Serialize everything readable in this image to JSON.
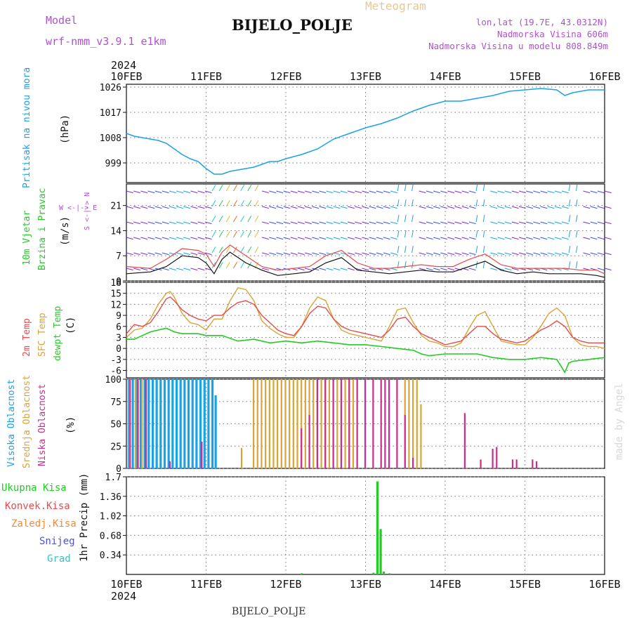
{
  "header": {
    "top_title": "Meteogram",
    "station": "BIJELO_POLJE",
    "model_label": "Model",
    "model_name": "wrf-nmm_v3.9.1  e1km",
    "coords": "lon,lat (19.7E, 43.0312N)",
    "elevation": "Nadmorska Visina 606m",
    "model_elevation": "Nadmorska Visina u modelu 808.849m",
    "footer_station": "BIJELO_POLJE",
    "credit": "made by Angel"
  },
  "colors": {
    "pressure": "#1ba2e6",
    "temp2m": "#e84b4b",
    "sfc": "#d9a437",
    "dewpt": "#22cc22",
    "high_cloud": "#1ba2e6",
    "mid_cloud": "#d9a437",
    "low_cloud": "#cc2d8c",
    "total_precip": "#22cc22",
    "conv_precip": "#e84b4b",
    "frozen_precip": "#f08a3a",
    "snow": "#5050e0",
    "grad": "#3cc0c0",
    "wind_label": "#22cc22",
    "gust": "#e84b4b",
    "compass": "#b050d0",
    "model_text": "#b050d0"
  },
  "chart_data": [
    {
      "type": "line",
      "id": "pressure",
      "ylabel": "(hPa)",
      "side_label": "Pritisak na nivou mora",
      "year": "2024",
      "x_ticks": [
        "10FEB",
        "11FEB",
        "12FEB",
        "13FEB",
        "14FEB",
        "15FEB",
        "16FEB"
      ],
      "ylim": [
        992,
        1027
      ],
      "y_ticks": [
        999,
        1008,
        1017,
        1026
      ],
      "x": [
        0,
        0.1,
        0.2,
        0.3,
        0.4,
        0.5,
        0.6,
        0.7,
        0.8,
        0.9,
        1.0,
        1.1,
        1.2,
        1.3,
        1.4,
        1.5,
        1.6,
        1.7,
        1.8,
        1.9,
        2.0,
        2.2,
        2.4,
        2.6,
        2.8,
        3.0,
        3.2,
        3.4,
        3.6,
        3.8,
        4.0,
        4.2,
        4.4,
        4.6,
        4.8,
        5.0,
        5.2,
        5.4,
        5.5,
        5.6,
        5.8,
        6.0
      ],
      "values": [
        1009.5,
        1008.5,
        1008,
        1007.5,
        1007,
        1006,
        1004,
        1002,
        1000.5,
        999.5,
        997,
        995,
        995,
        996,
        996.5,
        997,
        997.5,
        998.5,
        999.5,
        999.5,
        1000.5,
        1002,
        1004,
        1007.5,
        1009.5,
        1011.5,
        1013,
        1015,
        1017.5,
        1019.5,
        1021,
        1021,
        1022,
        1023,
        1024.5,
        1025,
        1025.5,
        1025,
        1023,
        1024,
        1025,
        1025
      ]
    },
    {
      "type": "line",
      "id": "wind",
      "ylabel": "(m/s)",
      "side_label_1": "10m Vjetar",
      "side_label_2": "Brzina i Pravac",
      "compass_label": "W <-|-> E",
      "compass_vertical": "S <-|-> N",
      "ylim": [
        0,
        27
      ],
      "y_ticks": [
        0,
        7,
        14,
        21
      ],
      "series": [
        {
          "name": "",
          "x": [
            0,
            0.3,
            0.5,
            0.7,
            0.9,
            1.0,
            1.1,
            1.2,
            1.3,
            1.5,
            1.7,
            1.9,
            2.1,
            2.3,
            2.5,
            2.7,
            2.9,
            3.1,
            3.3,
            3.5,
            3.7,
            3.9,
            4.1,
            4.3,
            4.5,
            4.7,
            4.9,
            5.1,
            5.3,
            5.5,
            5.7,
            5.9,
            6.0
          ],
          "values": [
            2,
            2.5,
            4,
            7,
            6.5,
            5,
            2,
            6,
            8,
            5,
            3,
            1.5,
            2,
            2.5,
            5,
            6.5,
            3,
            2.5,
            2,
            2.5,
            3,
            2.5,
            2.5,
            4,
            5.5,
            3,
            2,
            2.5,
            2,
            2,
            2,
            1.5,
            1
          ]
        },
        {
          "name": "",
          "x": [
            0,
            0.3,
            0.5,
            0.7,
            0.9,
            1.0,
            1.1,
            1.2,
            1.3,
            1.5,
            1.7,
            1.9,
            2.1,
            2.3,
            2.5,
            2.7,
            2.9,
            3.1,
            3.3,
            3.5,
            3.7,
            3.9,
            4.1,
            4.3,
            4.5,
            4.7,
            4.9,
            5.1,
            5.3,
            5.5,
            5.7,
            5.9,
            6.0
          ],
          "values": [
            4,
            3.5,
            6,
            9,
            8.5,
            7.5,
            4,
            8,
            10,
            7,
            4,
            3,
            3.5,
            4,
            7,
            8.5,
            5,
            3.5,
            3.5,
            4,
            4.5,
            4,
            4,
            6,
            7.5,
            4.5,
            3.5,
            3.5,
            3.5,
            3.5,
            3,
            3,
            2
          ]
        }
      ]
    },
    {
      "type": "line",
      "id": "temperature",
      "ylabel": "(C)",
      "side_label_1": "2m Temp",
      "side_label_2": "SFC Temp",
      "side_label_3": "dewpt Temp",
      "ylim": [
        -8,
        18
      ],
      "y_ticks": [
        -6,
        -3,
        0,
        3,
        6,
        9,
        12,
        15,
        18
      ],
      "series": [
        {
          "name": "2m Temp",
          "x": [
            0,
            0.1,
            0.2,
            0.3,
            0.4,
            0.5,
            0.55,
            0.6,
            0.7,
            0.8,
            0.9,
            1.0,
            1.1,
            1.2,
            1.3,
            1.4,
            1.5,
            1.6,
            1.7,
            1.8,
            1.9,
            2.0,
            2.1,
            2.2,
            2.3,
            2.4,
            2.5,
            2.6,
            2.7,
            2.8,
            2.9,
            3.0,
            3.1,
            3.2,
            3.3,
            3.4,
            3.5,
            3.6,
            3.7,
            3.8,
            3.9,
            4.0,
            4.1,
            4.2,
            4.3,
            4.4,
            4.5,
            4.6,
            4.7,
            4.8,
            4.9,
            5.0,
            5.1,
            5.2,
            5.3,
            5.4,
            5.5,
            5.6,
            5.7,
            5.8,
            5.9,
            6.0
          ],
          "values": [
            4,
            6.5,
            6,
            7,
            10,
            13.5,
            14,
            13,
            10.5,
            9,
            8,
            7.5,
            9,
            9,
            11,
            12.5,
            13,
            12,
            9,
            7,
            5,
            4,
            3.5,
            6,
            9.5,
            11.5,
            11,
            8,
            6,
            5,
            4.5,
            4,
            3.5,
            3,
            5,
            8,
            8.5,
            6,
            4,
            3,
            2,
            1,
            1.5,
            2,
            4,
            6,
            6,
            4,
            2.5,
            2,
            1.5,
            2,
            3.5,
            5,
            6,
            7.5,
            6,
            3,
            2,
            1.5,
            1.5,
            1.5
          ]
        },
        {
          "name": "SFC Temp",
          "x": [
            0,
            0.1,
            0.2,
            0.3,
            0.4,
            0.5,
            0.55,
            0.6,
            0.7,
            0.8,
            0.9,
            1.0,
            1.1,
            1.2,
            1.3,
            1.4,
            1.5,
            1.6,
            1.7,
            1.8,
            1.9,
            2.0,
            2.1,
            2.2,
            2.3,
            2.4,
            2.5,
            2.6,
            2.7,
            2.8,
            2.9,
            3.0,
            3.1,
            3.2,
            3.3,
            3.4,
            3.5,
            3.6,
            3.7,
            3.8,
            3.9,
            4.0,
            4.1,
            4.2,
            4.3,
            4.4,
            4.5,
            4.6,
            4.7,
            4.8,
            4.9,
            5.0,
            5.1,
            5.2,
            5.3,
            5.4,
            5.5,
            5.6,
            5.7,
            5.8,
            5.9,
            6.0
          ],
          "values": [
            3,
            5,
            5.5,
            8,
            12,
            15,
            15.5,
            14,
            9.5,
            7,
            6.5,
            5,
            8,
            8,
            13,
            16.5,
            16,
            13,
            7.5,
            5.5,
            4,
            3,
            3,
            6,
            11,
            14,
            13,
            8,
            5,
            4,
            3.5,
            3,
            2.5,
            2,
            6,
            10.5,
            11,
            7,
            3.5,
            2,
            1.5,
            0.5,
            0.5,
            1.5,
            5.5,
            9,
            10,
            6,
            2,
            1.5,
            1,
            1,
            3,
            6,
            9.5,
            11,
            9,
            3,
            1,
            0.5,
            0.5,
            0
          ]
        },
        {
          "name": "dewpt Temp",
          "x": [
            0,
            0.1,
            0.2,
            0.3,
            0.4,
            0.5,
            0.6,
            0.7,
            0.8,
            0.9,
            1.0,
            1.2,
            1.4,
            1.6,
            1.8,
            2.0,
            2.2,
            2.4,
            2.6,
            2.8,
            3.0,
            3.2,
            3.4,
            3.6,
            3.7,
            3.8,
            4.0,
            4.2,
            4.4,
            4.6,
            4.8,
            5.0,
            5.2,
            5.4,
            5.5,
            5.55,
            5.6,
            5.8,
            6.0
          ],
          "values": [
            2.5,
            2.5,
            3.5,
            4.5,
            5,
            5.5,
            4.5,
            4,
            4,
            4,
            3.5,
            3.5,
            2,
            2.5,
            1.5,
            2,
            1.5,
            2,
            1.5,
            1,
            1,
            0.5,
            0,
            -0.5,
            -1.5,
            -2,
            -1.5,
            -1.5,
            -1.5,
            -2.5,
            -3,
            -3,
            -2.5,
            -3,
            -6.5,
            -4,
            -3.5,
            -3,
            -2.5
          ]
        }
      ]
    },
    {
      "type": "bar",
      "id": "clouds",
      "ylabel": "(%)",
      "side_label_1": "Visoka Oblacnost",
      "side_label_2": "Srednja Oblacnost",
      "side_label_3": "Niska Oblacnost",
      "ylim": [
        0,
        100
      ],
      "y_ticks": [
        0,
        25,
        50,
        75,
        100
      ],
      "series": [
        {
          "name": "Visoka Oblacnost",
          "x": [
            0.03,
            0.08,
            0.13,
            0.18,
            0.23,
            0.28,
            0.33,
            0.38,
            0.43,
            0.48,
            0.53,
            0.58,
            0.63,
            0.68,
            0.73,
            0.78,
            0.83,
            0.88,
            0.93,
            0.98,
            1.03,
            1.08,
            1.12
          ],
          "values": [
            100,
            100,
            100,
            100,
            100,
            100,
            100,
            100,
            100,
            100,
            100,
            100,
            100,
            100,
            100,
            100,
            100,
            100,
            100,
            100,
            100,
            100,
            82
          ]
        },
        {
          "name": "Srednja Oblacnost",
          "x": [
            0.04,
            0.12,
            0.2,
            1.45,
            1.6,
            1.65,
            1.7,
            1.75,
            1.8,
            1.85,
            1.9,
            1.95,
            2.0,
            2.05,
            2.1,
            2.15,
            2.2,
            2.25,
            2.3,
            2.35,
            2.4,
            2.45,
            2.5,
            2.55,
            2.6,
            2.65,
            2.7,
            2.75,
            2.8,
            2.85,
            3.5,
            3.55,
            3.6,
            3.65,
            3.7
          ],
          "values": [
            100,
            100,
            100,
            23,
            100,
            100,
            100,
            100,
            100,
            100,
            100,
            100,
            100,
            100,
            100,
            100,
            100,
            100,
            100,
            100,
            100,
            100,
            100,
            100,
            100,
            100,
            100,
            100,
            100,
            100,
            100,
            100,
            100,
            100,
            72
          ]
        },
        {
          "name": "Niska Oblacnost",
          "x": [
            0.05,
            0.15,
            0.25,
            0.55,
            0.95,
            2.2,
            2.3,
            2.4,
            2.5,
            2.6,
            2.7,
            2.8,
            2.9,
            3.0,
            3.1,
            3.2,
            3.25,
            3.3,
            3.4,
            3.5,
            3.6,
            4.25,
            4.45,
            4.6,
            4.65,
            4.85,
            4.9,
            5.1,
            5.15
          ],
          "values": [
            100,
            100,
            100,
            8,
            30,
            45,
            60,
            100,
            100,
            100,
            100,
            100,
            100,
            100,
            100,
            100,
            100,
            100,
            100,
            60,
            12,
            62,
            10,
            22,
            24,
            10,
            10,
            10,
            8
          ]
        }
      ]
    },
    {
      "type": "bar",
      "id": "precip",
      "ylabel": "1hr Precip (mm)",
      "legend": [
        "Ukupna Kisa",
        "Konvek.Kisa",
        "Zaledj.Kisa",
        "Snijeg",
        "Grad"
      ],
      "ylim": [
        0,
        1.7
      ],
      "y_ticks": [
        0.34,
        0.68,
        1.02,
        1.36,
        1.7
      ],
      "x_ticks": [
        "10FEB",
        "11FEB",
        "12FEB",
        "13FEB",
        "14FEB",
        "15FEB",
        "16FEB"
      ],
      "year": "2024",
      "series": [
        {
          "name": "Ukupna Kisa",
          "x": [
            2.2,
            3.1,
            3.15,
            3.19,
            3.23,
            3.3
          ],
          "values": [
            0.02,
            0.03,
            1.62,
            0.79,
            0.05,
            0.02
          ]
        }
      ]
    }
  ]
}
